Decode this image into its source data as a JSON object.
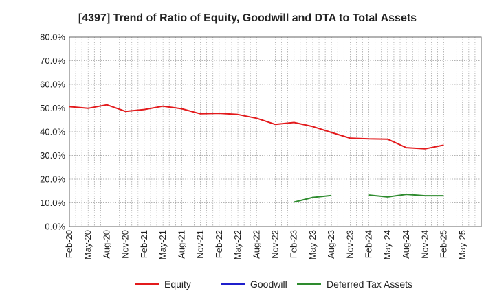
{
  "chart_data": {
    "type": "line",
    "title": "[4397]  Trend of Ratio of Equity, Goodwill and DTA to Total Assets",
    "xlabel": "",
    "ylabel": "",
    "ylim": [
      0,
      80
    ],
    "y_ticks": [
      "0.0%",
      "10.0%",
      "20.0%",
      "30.0%",
      "40.0%",
      "50.0%",
      "60.0%",
      "70.0%",
      "80.0%"
    ],
    "x_ticks": [
      "Feb-20",
      "May-20",
      "Aug-20",
      "Nov-20",
      "Feb-21",
      "May-21",
      "Aug-21",
      "Nov-21",
      "Feb-22",
      "May-22",
      "Aug-22",
      "Nov-22",
      "Feb-23",
      "May-23",
      "Aug-23",
      "Nov-23",
      "Feb-24",
      "May-24",
      "Aug-24",
      "Nov-24",
      "Feb-25",
      "May-25"
    ],
    "grid": true,
    "legend_position": "bottom",
    "series": [
      {
        "name": "Equity",
        "color": "#e31a1c",
        "values": [
          50.6,
          49.9,
          51.4,
          48.6,
          49.4,
          50.8,
          49.7,
          47.6,
          47.8,
          47.3,
          45.7,
          43.1,
          43.9,
          42.2,
          39.7,
          37.3,
          37.0,
          36.9,
          33.3,
          32.8,
          34.4,
          null
        ]
      },
      {
        "name": "Goodwill",
        "color": "#1f1fcc",
        "values": [
          null,
          null,
          null,
          null,
          null,
          null,
          null,
          null,
          null,
          null,
          null,
          null,
          null,
          null,
          null,
          null,
          null,
          null,
          null,
          null,
          null,
          null
        ]
      },
      {
        "name": "Deferred Tax Assets",
        "color": "#2e8b2e",
        "values": [
          null,
          null,
          null,
          null,
          null,
          null,
          null,
          null,
          null,
          null,
          null,
          null,
          10.3,
          12.3,
          13.1,
          null,
          13.3,
          12.5,
          13.6,
          13.0,
          13.0,
          null
        ]
      }
    ]
  }
}
